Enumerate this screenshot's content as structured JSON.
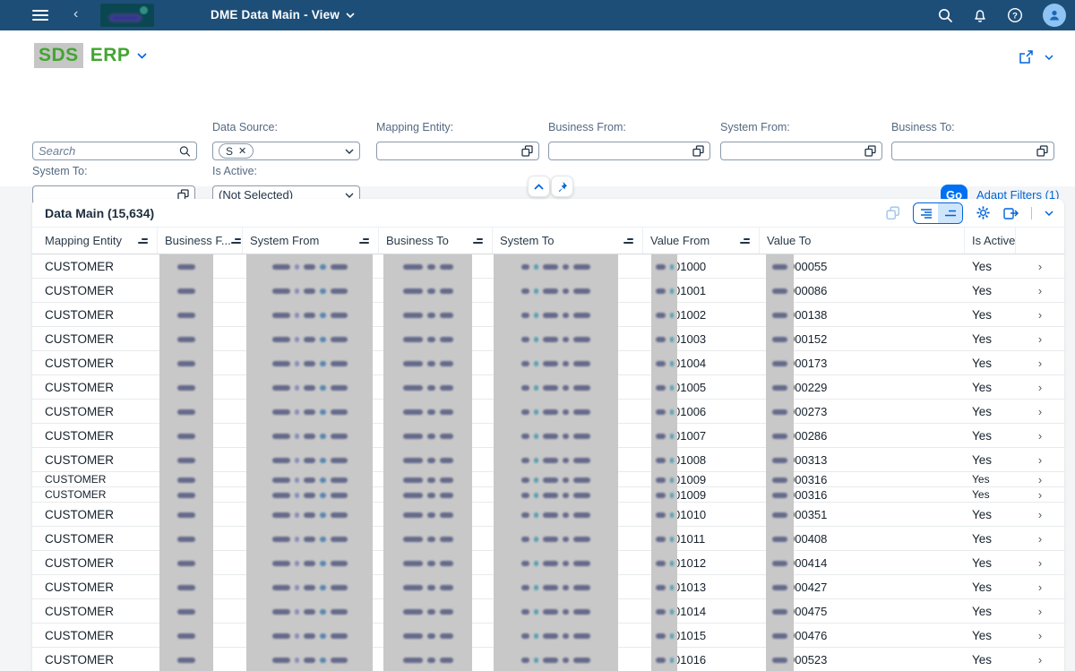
{
  "colors": {
    "shell_bar": "#1d4e78",
    "accent_blue": "#0064d9",
    "go_button_blue": "#0070f2",
    "brand_green": "#43a531",
    "redaction_gray": "#c8c8c8"
  },
  "shell": {
    "title": "DME Data Main - View"
  },
  "app_header": {
    "brand_redacted": "SDS",
    "brand": "ERP"
  },
  "filters": {
    "search": {
      "placeholder": "Search"
    },
    "fields": [
      {
        "label": "Data Source:",
        "type": "multiselect",
        "token": "S"
      },
      {
        "label": "Mapping Entity:",
        "type": "valuehelp",
        "value": ""
      },
      {
        "label": "Business From:",
        "type": "valuehelp",
        "value": ""
      },
      {
        "label": "System From:",
        "type": "valuehelp",
        "value": ""
      },
      {
        "label": "Business To:",
        "type": "valuehelp",
        "value": ""
      },
      {
        "label": "System To:",
        "type": "valuehelp",
        "value": ""
      },
      {
        "label": "Is Active:",
        "type": "select",
        "value": "(Not Selected)"
      }
    ],
    "go_label": "Go",
    "adapt_filters_label": "Adapt Filters (1)"
  },
  "table": {
    "title": "Data Main (15,634)",
    "columns": [
      {
        "label": "Mapping Entity",
        "sorted": true
      },
      {
        "label": "Business F...",
        "sorted": true
      },
      {
        "label": "System From",
        "sorted": true
      },
      {
        "label": "Business To",
        "sorted": true
      },
      {
        "label": "System To",
        "sorted": true
      },
      {
        "label": "Value From",
        "sorted": true
      },
      {
        "label": "Value To",
        "sorted": false
      },
      {
        "label": "Is Active",
        "sorted": false
      },
      {
        "label": "",
        "sorted": false
      }
    ],
    "rows": [
      {
        "mapping_entity": "CUSTOMER",
        "value_from": "01000",
        "value_to": "000055",
        "is_active": "Yes",
        "compressed": false
      },
      {
        "mapping_entity": "CUSTOMER",
        "value_from": "01001",
        "value_to": "000086",
        "is_active": "Yes",
        "compressed": false
      },
      {
        "mapping_entity": "CUSTOMER",
        "value_from": "01002",
        "value_to": "000138",
        "is_active": "Yes",
        "compressed": false
      },
      {
        "mapping_entity": "CUSTOMER",
        "value_from": "01003",
        "value_to": "000152",
        "is_active": "Yes",
        "compressed": false
      },
      {
        "mapping_entity": "CUSTOMER",
        "value_from": "01004",
        "value_to": "000173",
        "is_active": "Yes",
        "compressed": false
      },
      {
        "mapping_entity": "CUSTOMER",
        "value_from": "01005",
        "value_to": "000229",
        "is_active": "Yes",
        "compressed": false
      },
      {
        "mapping_entity": "CUSTOMER",
        "value_from": "01006",
        "value_to": "000273",
        "is_active": "Yes",
        "compressed": false
      },
      {
        "mapping_entity": "CUSTOMER",
        "value_from": "01007",
        "value_to": "000286",
        "is_active": "Yes",
        "compressed": false
      },
      {
        "mapping_entity": "CUSTOMER",
        "value_from": "01008",
        "value_to": "000313",
        "is_active": "Yes",
        "compressed": false
      },
      {
        "mapping_entity": "CUSTOMER",
        "value_from": "01009",
        "value_to": "000316",
        "is_active": "Yes",
        "compressed": true
      },
      {
        "mapping_entity": "CUSTOMER",
        "value_from": "01009",
        "value_to": "000316",
        "is_active": "Yes",
        "compressed": true
      },
      {
        "mapping_entity": "CUSTOMER",
        "value_from": "01010",
        "value_to": "000351",
        "is_active": "Yes",
        "compressed": false
      },
      {
        "mapping_entity": "CUSTOMER",
        "value_from": "01011",
        "value_to": "000408",
        "is_active": "Yes",
        "compressed": false
      },
      {
        "mapping_entity": "CUSTOMER",
        "value_from": "01012",
        "value_to": "000414",
        "is_active": "Yes",
        "compressed": false
      },
      {
        "mapping_entity": "CUSTOMER",
        "value_from": "01013",
        "value_to": "000427",
        "is_active": "Yes",
        "compressed": false
      },
      {
        "mapping_entity": "CUSTOMER",
        "value_from": "01014",
        "value_to": "000475",
        "is_active": "Yes",
        "compressed": false
      },
      {
        "mapping_entity": "CUSTOMER",
        "value_from": "01015",
        "value_to": "000476",
        "is_active": "Yes",
        "compressed": false
      },
      {
        "mapping_entity": "CUSTOMER",
        "value_from": "01016",
        "value_to": "000523",
        "is_active": "Yes",
        "compressed": false
      }
    ]
  }
}
